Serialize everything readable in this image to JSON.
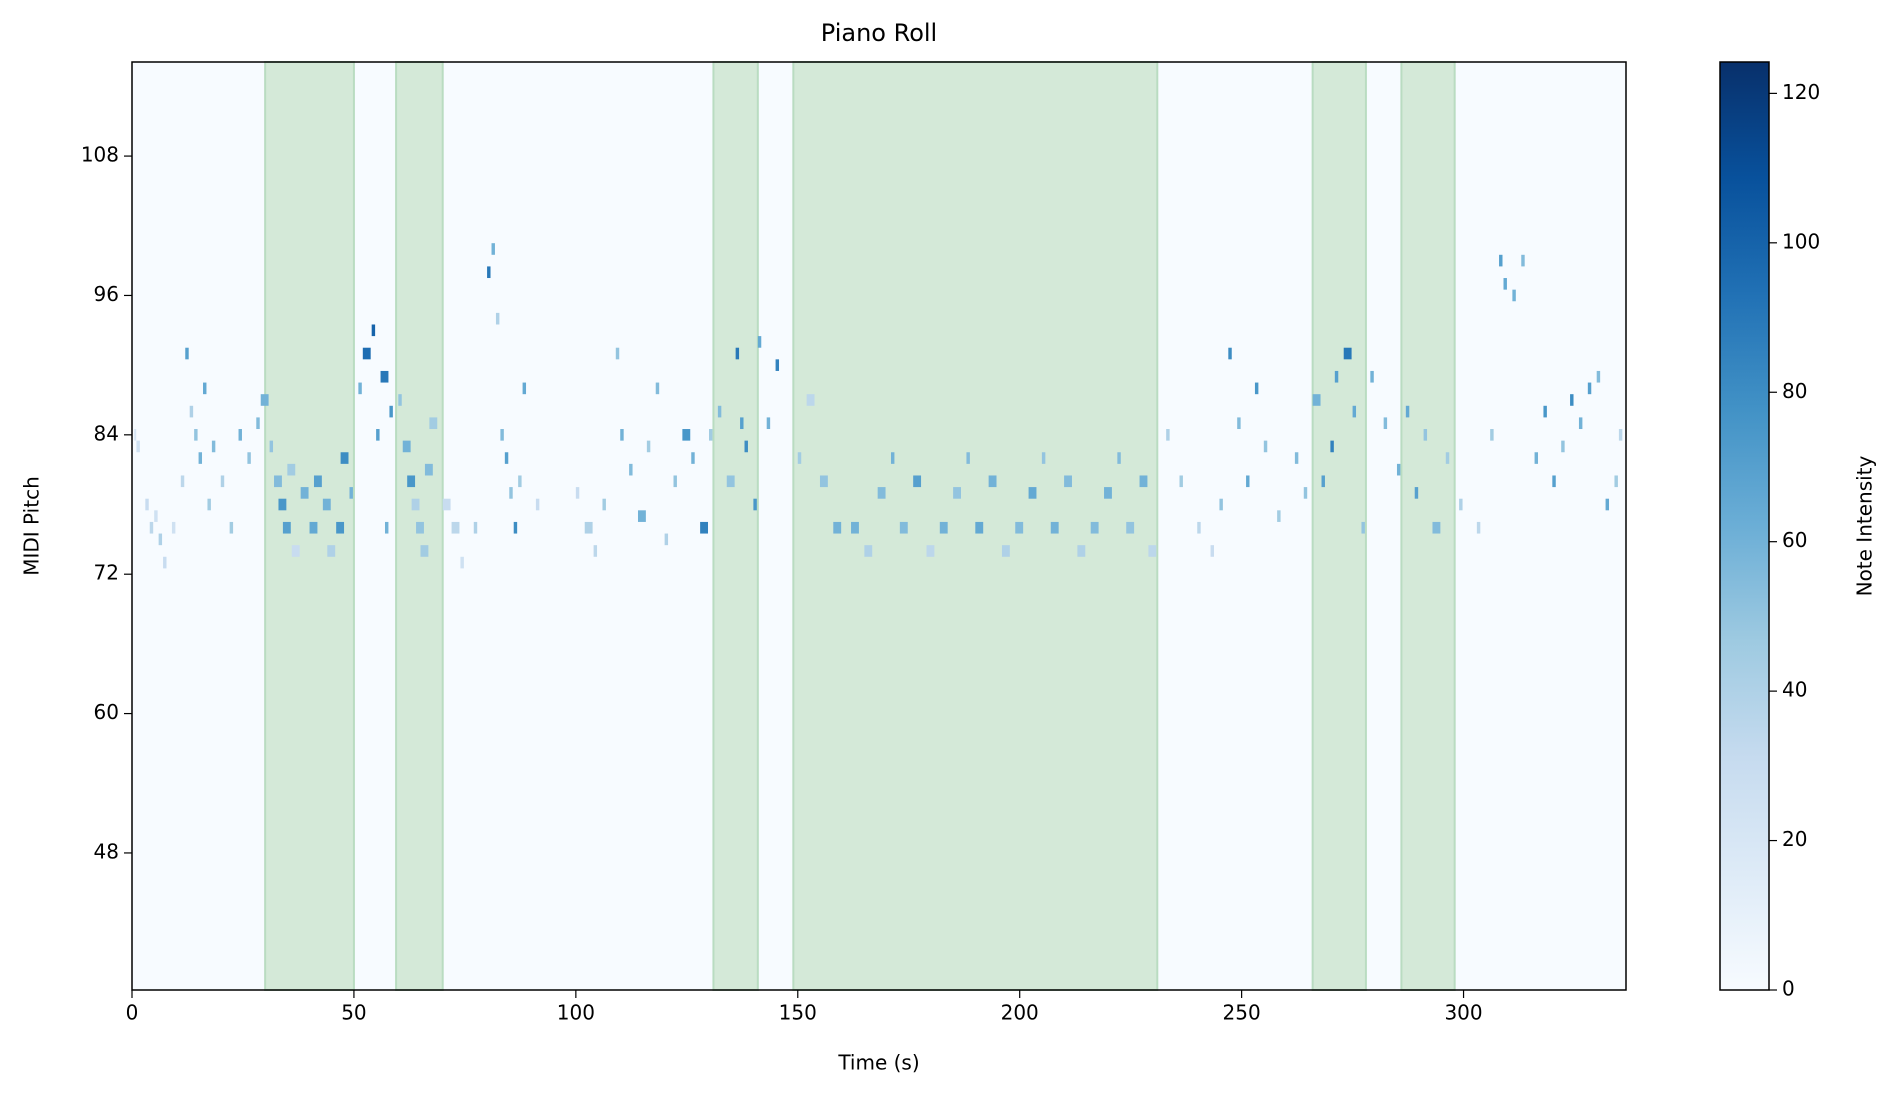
{
  "chart_data": {
    "type": "pianoroll",
    "title": "Piano Roll",
    "x_label": "Time (s)",
    "y_label": "MIDI Pitch",
    "colorbar_label": "Note Intensity",
    "xlim": [
      0,
      336.6
    ],
    "xticks": [
      0,
      50,
      100,
      150,
      200,
      250,
      300
    ],
    "ylim": [
      36.2,
      116.1
    ],
    "yticks": [
      48,
      60,
      72,
      84,
      96,
      108
    ],
    "clim": [
      0,
      124.2
    ],
    "cticks": [
      0,
      20,
      40,
      60,
      80,
      100,
      120
    ],
    "colormap": "Blues",
    "span_color": "#d4e9d8",
    "span_edge_color": "#b9dcc1",
    "spans": [
      [
        30,
        50
      ],
      [
        59.5,
        70
      ],
      [
        131,
        141
      ],
      [
        149,
        231
      ],
      [
        266,
        278
      ],
      [
        286,
        298
      ]
    ],
    "notes": [
      [
        0.5,
        1,
        84,
        20
      ],
      [
        1,
        2,
        83,
        25
      ],
      [
        3,
        4,
        78,
        30
      ],
      [
        4,
        5,
        76,
        35
      ],
      [
        5,
        6,
        77,
        25
      ],
      [
        6,
        7,
        75,
        40
      ],
      [
        7,
        8,
        73,
        30
      ],
      [
        9,
        10,
        76,
        25
      ],
      [
        11,
        12,
        80,
        35
      ],
      [
        12,
        13,
        91,
        70
      ],
      [
        13,
        14,
        86,
        40
      ],
      [
        14,
        15,
        84,
        50
      ],
      [
        15,
        16,
        82,
        60
      ],
      [
        16,
        17,
        88,
        65
      ],
      [
        17,
        18,
        78,
        45
      ],
      [
        18,
        19,
        83,
        55
      ],
      [
        20,
        21,
        80,
        40
      ],
      [
        22,
        23,
        76,
        45
      ],
      [
        24,
        25,
        84,
        60
      ],
      [
        26,
        27,
        82,
        50
      ],
      [
        28,
        29,
        85,
        55
      ],
      [
        29,
        31,
        87,
        60
      ],
      [
        31,
        32,
        83,
        50
      ],
      [
        32,
        34,
        80,
        55
      ],
      [
        33,
        35,
        78,
        75
      ],
      [
        34,
        36,
        76,
        70
      ],
      [
        35,
        37,
        81,
        45
      ],
      [
        36,
        38,
        74,
        30
      ],
      [
        38,
        40,
        79,
        60
      ],
      [
        40,
        42,
        76,
        65
      ],
      [
        41,
        43,
        80,
        70
      ],
      [
        43,
        45,
        78,
        60
      ],
      [
        44,
        46,
        74,
        40
      ],
      [
        46,
        48,
        76,
        75
      ],
      [
        47,
        49,
        82,
        80
      ],
      [
        49,
        50,
        79,
        60
      ],
      [
        51,
        52,
        88,
        60
      ],
      [
        52,
        54,
        91,
        95
      ],
      [
        54,
        55,
        93,
        100
      ],
      [
        55,
        56,
        84,
        70
      ],
      [
        56,
        58,
        89,
        90
      ],
      [
        57,
        58,
        76,
        60
      ],
      [
        58,
        59,
        86,
        75
      ],
      [
        60,
        61,
        87,
        50
      ],
      [
        61,
        63,
        83,
        60
      ],
      [
        62,
        64,
        80,
        75
      ],
      [
        63,
        65,
        78,
        40
      ],
      [
        64,
        66,
        76,
        50
      ],
      [
        65,
        67,
        74,
        45
      ],
      [
        66,
        68,
        81,
        55
      ],
      [
        67,
        69,
        85,
        45
      ],
      [
        70,
        72,
        78,
        30
      ],
      [
        72,
        74,
        76,
        35
      ],
      [
        74,
        75,
        73,
        25
      ],
      [
        77,
        78,
        76,
        40
      ],
      [
        80,
        81,
        98,
        90
      ],
      [
        81,
        82,
        100,
        60
      ],
      [
        82,
        83,
        94,
        40
      ],
      [
        83,
        84,
        84,
        55
      ],
      [
        84,
        85,
        82,
        70
      ],
      [
        85,
        86,
        79,
        50
      ],
      [
        86,
        87,
        76,
        80
      ],
      [
        87,
        88,
        80,
        45
      ],
      [
        88,
        89,
        88,
        65
      ],
      [
        91,
        92,
        78,
        30
      ],
      [
        100,
        101,
        79,
        30
      ],
      [
        102,
        104,
        76,
        40
      ],
      [
        104,
        105,
        74,
        35
      ],
      [
        106,
        107,
        78,
        45
      ],
      [
        109,
        110,
        91,
        50
      ],
      [
        110,
        111,
        84,
        60
      ],
      [
        112,
        113,
        81,
        55
      ],
      [
        114,
        116,
        77,
        60
      ],
      [
        116,
        117,
        83,
        45
      ],
      [
        118,
        119,
        88,
        55
      ],
      [
        120,
        121,
        75,
        40
      ],
      [
        122,
        123,
        80,
        50
      ],
      [
        124,
        126,
        84,
        75
      ],
      [
        126,
        127,
        82,
        60
      ],
      [
        128,
        130,
        76,
        85
      ],
      [
        130,
        131,
        84,
        45
      ],
      [
        132,
        133,
        86,
        55
      ],
      [
        134,
        136,
        80,
        50
      ],
      [
        136,
        137,
        91,
        90
      ],
      [
        137,
        138,
        85,
        70
      ],
      [
        138,
        139,
        83,
        80
      ],
      [
        140,
        141,
        78,
        75
      ],
      [
        141,
        142,
        92,
        65
      ],
      [
        143,
        144,
        85,
        60
      ],
      [
        145,
        146,
        90,
        85
      ],
      [
        150,
        151,
        82,
        45
      ],
      [
        152,
        154,
        87,
        35
      ],
      [
        155,
        157,
        80,
        50
      ],
      [
        158,
        160,
        76,
        60
      ],
      [
        162,
        164,
        76,
        60
      ],
      [
        165,
        167,
        74,
        40
      ],
      [
        168,
        170,
        79,
        55
      ],
      [
        171,
        172,
        82,
        60
      ],
      [
        173,
        175,
        76,
        55
      ],
      [
        176,
        178,
        80,
        70
      ],
      [
        179,
        181,
        74,
        35
      ],
      [
        182,
        184,
        76,
        60
      ],
      [
        185,
        187,
        79,
        50
      ],
      [
        188,
        189,
        82,
        55
      ],
      [
        190,
        192,
        76,
        65
      ],
      [
        193,
        195,
        80,
        60
      ],
      [
        196,
        198,
        74,
        40
      ],
      [
        199,
        201,
        76,
        55
      ],
      [
        202,
        204,
        79,
        65
      ],
      [
        205,
        206,
        82,
        50
      ],
      [
        207,
        209,
        76,
        60
      ],
      [
        210,
        212,
        80,
        55
      ],
      [
        213,
        215,
        74,
        40
      ],
      [
        216,
        218,
        76,
        55
      ],
      [
        219,
        221,
        79,
        60
      ],
      [
        222,
        223,
        82,
        55
      ],
      [
        224,
        226,
        76,
        50
      ],
      [
        227,
        229,
        80,
        60
      ],
      [
        229,
        231,
        74,
        35
      ],
      [
        233,
        234,
        84,
        40
      ],
      [
        236,
        237,
        80,
        45
      ],
      [
        240,
        241,
        76,
        35
      ],
      [
        243,
        244,
        74,
        30
      ],
      [
        245,
        246,
        78,
        50
      ],
      [
        247,
        248,
        91,
        80
      ],
      [
        249,
        250,
        85,
        55
      ],
      [
        251,
        252,
        80,
        65
      ],
      [
        253,
        254,
        88,
        75
      ],
      [
        255,
        256,
        83,
        50
      ],
      [
        258,
        259,
        77,
        45
      ],
      [
        262,
        263,
        82,
        55
      ],
      [
        264,
        265,
        79,
        50
      ],
      [
        266,
        268,
        87,
        60
      ],
      [
        268,
        269,
        80,
        70
      ],
      [
        270,
        271,
        83,
        85
      ],
      [
        271,
        272,
        89,
        70
      ],
      [
        273,
        275,
        91,
        90
      ],
      [
        275,
        276,
        86,
        65
      ],
      [
        277,
        278,
        76,
        50
      ],
      [
        279,
        280,
        89,
        60
      ],
      [
        282,
        283,
        85,
        55
      ],
      [
        285,
        286,
        81,
        60
      ],
      [
        287,
        288,
        86,
        65
      ],
      [
        289,
        290,
        79,
        70
      ],
      [
        291,
        292,
        84,
        50
      ],
      [
        293,
        295,
        76,
        55
      ],
      [
        296,
        297,
        82,
        45
      ],
      [
        299,
        300,
        78,
        40
      ],
      [
        303,
        304,
        76,
        35
      ],
      [
        306,
        307,
        84,
        45
      ],
      [
        308,
        309,
        99,
        70
      ],
      [
        309,
        310,
        97,
        65
      ],
      [
        311,
        312,
        96,
        60
      ],
      [
        313,
        314,
        99,
        55
      ],
      [
        316,
        317,
        82,
        60
      ],
      [
        318,
        319,
        86,
        75
      ],
      [
        320,
        321,
        80,
        70
      ],
      [
        322,
        323,
        83,
        50
      ],
      [
        324,
        325,
        87,
        80
      ],
      [
        326,
        327,
        85,
        60
      ],
      [
        328,
        329,
        88,
        70
      ],
      [
        330,
        331,
        89,
        55
      ],
      [
        332,
        333,
        78,
        65
      ],
      [
        334,
        335,
        80,
        45
      ],
      [
        335,
        336,
        84,
        35
      ]
    ]
  }
}
